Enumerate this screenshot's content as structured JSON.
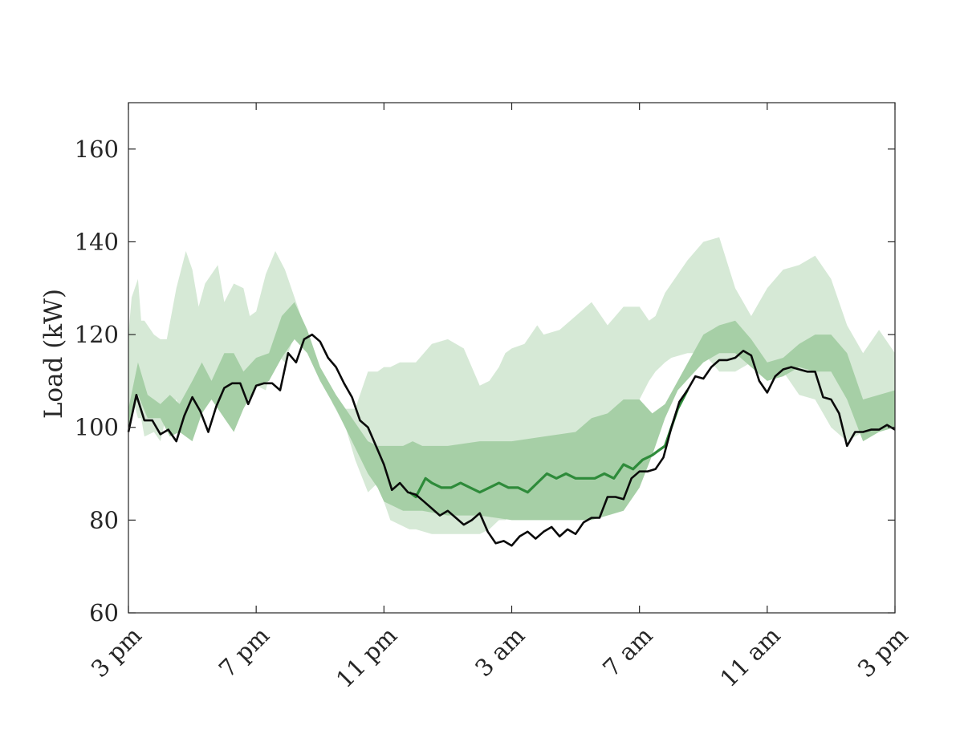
{
  "chart_data": {
    "type": "area",
    "title": "",
    "xlabel": "",
    "ylabel": "Load (kW)",
    "ylim": [
      60,
      170
    ],
    "xlim": [
      0,
      24
    ],
    "grid": false,
    "legend": "none",
    "x_ticks": [
      {
        "x": 0,
        "label": "3 pm"
      },
      {
        "x": 4,
        "label": "7 pm"
      },
      {
        "x": 8,
        "label": "11 pm"
      },
      {
        "x": 12,
        "label": "3 am"
      },
      {
        "x": 16,
        "label": "7 am"
      },
      {
        "x": 20,
        "label": "11 am"
      },
      {
        "x": 24,
        "label": "3 pm"
      }
    ],
    "y_ticks": [
      60,
      80,
      100,
      120,
      140,
      160
    ],
    "colors": {
      "outer_band": "#d6e9d6",
      "inner_band": "#a6cfa6",
      "forecast_line": "#2e8b3a",
      "actual_line": "#0a0a0a"
    },
    "series": [
      {
        "role": "outer_band",
        "x": [
          0,
          0.1,
          0.3,
          0.4,
          0.5,
          0.8,
          1.0,
          1.2,
          1.5,
          1.8,
          2.0,
          2.2,
          2.4,
          2.8,
          3.0,
          3.3,
          3.6,
          3.8,
          4.0,
          4.3,
          4.6,
          4.9,
          5.2,
          5.5,
          5.8,
          6.1,
          6.4,
          6.8,
          7.1,
          7.5,
          7.8,
          8.0,
          8.2,
          8.5,
          8.8,
          9.0,
          9.5,
          10.0,
          10.5,
          11.0,
          11.3,
          11.6,
          11.8,
          12.0,
          12.4,
          12.8,
          13.0,
          13.5,
          14.0,
          14.5,
          15.0,
          15.5,
          16.0,
          16.3,
          16.5,
          16.8,
          17.0,
          17.5,
          18.0,
          18.5,
          19.0,
          19.5,
          20.0,
          20.5,
          21.0,
          21.5,
          22.0,
          22.5,
          23.0,
          23.5,
          24.0
        ],
        "upper": [
          120,
          128,
          132,
          123,
          123,
          120,
          119,
          119,
          130,
          138,
          134,
          126,
          131,
          135,
          127,
          131,
          130,
          124,
          125,
          133,
          138,
          134,
          128,
          122,
          116,
          110,
          106,
          104,
          104,
          112,
          112,
          113,
          113,
          114,
          114,
          114,
          118,
          119,
          117,
          109,
          110,
          113,
          116,
          117,
          118,
          122,
          120,
          121,
          124,
          127,
          122,
          126,
          126,
          123,
          124,
          129,
          131,
          136,
          140,
          141,
          130,
          124,
          130,
          134,
          135,
          137,
          132,
          122,
          116,
          121,
          116
        ],
        "lower": [
          99,
          107,
          102,
          102,
          98,
          99,
          97,
          103,
          106,
          102,
          99,
          104,
          109,
          110,
          110,
          105,
          109,
          110,
          109,
          108,
          116,
          114,
          120,
          118,
          114,
          110,
          105,
          100,
          93,
          86,
          88,
          84,
          80,
          79,
          78,
          78,
          77,
          77,
          77,
          77,
          78,
          80,
          80,
          81,
          82,
          84,
          85,
          85,
          87,
          89,
          93,
          100,
          106,
          110,
          112,
          114,
          115,
          116,
          116,
          112,
          112,
          114,
          112,
          112,
          107,
          106,
          100,
          97,
          99,
          100,
          100
        ]
      },
      {
        "role": "inner_band",
        "x": [
          0,
          0.3,
          0.6,
          1.0,
          1.3,
          1.6,
          2.0,
          2.3,
          2.6,
          3.0,
          3.3,
          3.6,
          4.0,
          4.4,
          4.8,
          5.2,
          5.6,
          6.0,
          6.5,
          7.0,
          7.5,
          7.8,
          8.0,
          8.3,
          8.6,
          8.9,
          9.2,
          10.0,
          11.0,
          12.0,
          13.0,
          14.0,
          14.5,
          15.0,
          15.5,
          16.0,
          16.4,
          16.8,
          17.2,
          17.6,
          18.0,
          18.5,
          19.0,
          19.5,
          20.0,
          20.5,
          21.0,
          21.5,
          22.0,
          22.5,
          23.0,
          23.5,
          24.0
        ],
        "upper": [
          104,
          114,
          107,
          105,
          107,
          105,
          110,
          114,
          110,
          116,
          116,
          112,
          115,
          116,
          124,
          127,
          121,
          113,
          107,
          102,
          97,
          96,
          96,
          96,
          96,
          97,
          96,
          96,
          97,
          97,
          98,
          99,
          102,
          103,
          106,
          106,
          103,
          105,
          110,
          115,
          120,
          122,
          123,
          119,
          114,
          115,
          118,
          120,
          120,
          116,
          106,
          107,
          108
        ],
        "lower": [
          99,
          107,
          102,
          102,
          98,
          99,
          97,
          103,
          106,
          102,
          99,
          104,
          109,
          110,
          115,
          119,
          116,
          110,
          104,
          97,
          90,
          87,
          84,
          83,
          82,
          82,
          82,
          81,
          81,
          80,
          80,
          80,
          80,
          81,
          82,
          87,
          94,
          102,
          108,
          111,
          114,
          116,
          116,
          113,
          110,
          111,
          113,
          112,
          112,
          106,
          97,
          99,
          100
        ]
      },
      {
        "name": "",
        "role": "forecast_line",
        "x": [
          8.8,
          9.0,
          9.3,
          9.5,
          9.8,
          10.1,
          10.4,
          10.7,
          11.0,
          11.3,
          11.6,
          11.9,
          12.2,
          12.5,
          12.8,
          13.1,
          13.4,
          13.7,
          14.0,
          14.3,
          14.6,
          14.9,
          15.2,
          15.5,
          15.8,
          16.1,
          16.4,
          16.6,
          16.8,
          17.0,
          17.2,
          17.5
        ],
        "y": [
          86,
          85,
          89,
          88,
          87,
          87,
          88,
          87,
          86,
          87,
          88,
          87,
          87,
          86,
          88,
          90,
          89,
          90,
          89,
          89,
          89,
          90,
          89,
          92,
          91,
          93,
          94,
          95,
          96,
          100,
          104,
          108
        ]
      },
      {
        "name": "",
        "role": "actual_line",
        "x": [
          0,
          0.25,
          0.5,
          0.75,
          1.0,
          1.25,
          1.5,
          1.75,
          2.0,
          2.25,
          2.5,
          2.75,
          3.0,
          3.25,
          3.5,
          3.75,
          4.0,
          4.25,
          4.5,
          4.75,
          5.0,
          5.25,
          5.5,
          5.75,
          6.0,
          6.25,
          6.5,
          6.75,
          7.0,
          7.25,
          7.5,
          7.75,
          8.0,
          8.25,
          8.5,
          8.75,
          9.0,
          9.25,
          9.5,
          9.75,
          10.0,
          10.25,
          10.5,
          10.75,
          11.0,
          11.25,
          11.5,
          11.75,
          12.0,
          12.25,
          12.5,
          12.75,
          13.0,
          13.25,
          13.5,
          13.75,
          14.0,
          14.25,
          14.5,
          14.75,
          15.0,
          15.25,
          15.5,
          15.75,
          16.0,
          16.25,
          16.5,
          16.75,
          17.0,
          17.25,
          17.5,
          17.75,
          18.0,
          18.25,
          18.5,
          18.75,
          19.0,
          19.25,
          19.5,
          19.75,
          20.0,
          20.25,
          20.5,
          20.75,
          21.0,
          21.25,
          21.5,
          21.75,
          22.0,
          22.25,
          22.5,
          22.75,
          23.0,
          23.25,
          23.5,
          23.75,
          24.0
        ],
        "y": [
          99,
          107,
          101.5,
          101.5,
          98.5,
          99.5,
          97,
          102.5,
          106.5,
          103.5,
          99,
          104.5,
          108.5,
          109.5,
          109.5,
          105,
          109,
          109.5,
          109.5,
          108,
          116,
          114,
          119,
          120,
          118.5,
          115,
          113,
          109.5,
          106.5,
          101.5,
          100,
          96,
          92,
          86.5,
          88,
          86,
          85.5,
          84,
          82.5,
          81,
          82,
          80.5,
          79,
          80,
          81.5,
          77.5,
          75,
          75.5,
          74.5,
          76.5,
          77.5,
          76,
          77.5,
          78.5,
          76.5,
          78,
          77,
          79.5,
          80.5,
          80.5,
          85,
          85,
          84.5,
          89,
          90.5,
          90.5,
          91,
          93.5,
          100,
          105.5,
          108,
          111,
          110.5,
          113,
          114.5,
          114.5,
          115,
          116.5,
          115.5,
          110,
          107.5,
          111,
          112.5,
          113,
          112.5,
          112,
          112,
          106.5,
          106,
          103,
          96,
          99,
          99,
          99.5,
          99.5,
          100.5,
          99.5
        ]
      }
    ]
  }
}
